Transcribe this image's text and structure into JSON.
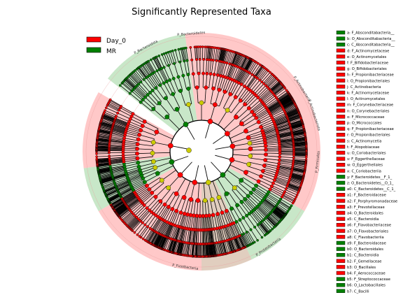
{
  "chart_data": {
    "type": "cladogram",
    "title": "Significantly Represented Taxa",
    "legend": {
      "placement": "top-left",
      "entries": [
        {
          "label": "Day_0",
          "color": "#ff0000"
        },
        {
          "label": "MR",
          "color": "#008000"
        }
      ]
    },
    "colors": {
      "Day_0": "#ff0000",
      "MR": "#008000",
      "neutral_node": "#cccc00",
      "Day_0_shade": "#ff9a9a",
      "MR_shade": "#9ad39a",
      "other_shade": "#c8a58a"
    },
    "outer_clades": [
      {
        "label": "P_Bacteroidetes",
        "group": "Day_0"
      },
      {
        "label": "P_Bacteroidota",
        "group": "MR"
      },
      {
        "label": "P_Actinobacteria",
        "group": "Day_0"
      },
      {
        "label": "P_Actinobacteriota",
        "group": "Day_0"
      },
      {
        "label": "P_Firmicutes",
        "group": "Day_0"
      },
      {
        "label": "P_Proteobacteria",
        "group": "MR"
      },
      {
        "label": "P_Fusobacteria",
        "group": "Day_0"
      }
    ],
    "clade_key": [
      {
        "code": "a",
        "taxon": "F_Absconditabacteria__",
        "group": "MR"
      },
      {
        "code": "b",
        "taxon": "O_Absconditabacteria__",
        "group": "MR"
      },
      {
        "code": "c",
        "taxon": "C_Absconditabacteria__",
        "group": "MR"
      },
      {
        "code": "d",
        "taxon": "F_Actinomycetaceae",
        "group": "Day_0"
      },
      {
        "code": "e",
        "taxon": "O_Actinomycetales",
        "group": "Day_0"
      },
      {
        "code": "f",
        "taxon": "F_Bifidobacteriaceae",
        "group": "Day_0"
      },
      {
        "code": "g",
        "taxon": "O_Bifidobacteriales",
        "group": "Day_0"
      },
      {
        "code": "h",
        "taxon": "F_Propionibacteriaceae",
        "group": "Day_0"
      },
      {
        "code": "i",
        "taxon": "O_Propionibacteriales",
        "group": "Day_0"
      },
      {
        "code": "j",
        "taxon": "C_Actinobacteria",
        "group": "Day_0"
      },
      {
        "code": "k",
        "taxon": "F_Actinomycetaceae",
        "group": "Day_0"
      },
      {
        "code": "l",
        "taxon": "O_Actinomycetales",
        "group": "Day_0"
      },
      {
        "code": "m",
        "taxon": "F_Corynebacteriaceae",
        "group": "Day_0"
      },
      {
        "code": "n",
        "taxon": "O_Corynebacteriales",
        "group": "Day_0"
      },
      {
        "code": "o",
        "taxon": "F_Micrococcaceae",
        "group": "Day_0"
      },
      {
        "code": "p",
        "taxon": "O_Micrococcales",
        "group": "Day_0"
      },
      {
        "code": "q",
        "taxon": "F_Propionibacteriaceae",
        "group": "Day_0"
      },
      {
        "code": "r",
        "taxon": "O_Propionibacteriales",
        "group": "Day_0"
      },
      {
        "code": "s",
        "taxon": "C_Actinomycetia",
        "group": "Day_0"
      },
      {
        "code": "t",
        "taxon": "F_Atopobiaceae",
        "group": "Day_0"
      },
      {
        "code": "u",
        "taxon": "O_Coriobacteriales",
        "group": "Day_0"
      },
      {
        "code": "v",
        "taxon": "F_Eggerthellaceae",
        "group": "Day_0"
      },
      {
        "code": "w",
        "taxon": "O_Eggerthellales",
        "group": "Day_0"
      },
      {
        "code": "x",
        "taxon": "C_Coriobacteriia",
        "group": "Day_0"
      },
      {
        "code": "y",
        "taxon": "F_Bacteroidetes__F_1_",
        "group": "MR"
      },
      {
        "code": "z",
        "taxon": "O_Bacteroidetes__O_1_",
        "group": "MR"
      },
      {
        "code": "a0",
        "taxon": "C_Bacteroidetes__C_1_",
        "group": "MR"
      },
      {
        "code": "a1",
        "taxon": "F_Bacteroidaceae",
        "group": "Day_0"
      },
      {
        "code": "a2",
        "taxon": "F_Porphyromonadaceae",
        "group": "Day_0"
      },
      {
        "code": "a3",
        "taxon": "F_Prevotellaceae",
        "group": "Day_0"
      },
      {
        "code": "a4",
        "taxon": "O_Bacteroidales",
        "group": "Day_0"
      },
      {
        "code": "a5",
        "taxon": "C_Bacteroidia",
        "group": "Day_0"
      },
      {
        "code": "a6",
        "taxon": "F_Flavobacteriaceae",
        "group": "Day_0"
      },
      {
        "code": "a7",
        "taxon": "O_Flavobacteriales",
        "group": "Day_0"
      },
      {
        "code": "a8",
        "taxon": "C_Flavobacteriia",
        "group": "Day_0"
      },
      {
        "code": "a9",
        "taxon": "F_Bacteroidaceae",
        "group": "MR"
      },
      {
        "code": "b0",
        "taxon": "O_Bacteroidales",
        "group": "MR"
      },
      {
        "code": "b1",
        "taxon": "C_Bacteroidia",
        "group": "MR"
      },
      {
        "code": "b2",
        "taxon": "F_Gemellaceae",
        "group": "Day_0"
      },
      {
        "code": "b3",
        "taxon": "O_Bacillales",
        "group": "Day_0"
      },
      {
        "code": "b4",
        "taxon": "F_Aerococcaceae",
        "group": "Day_0"
      },
      {
        "code": "b5",
        "taxon": "F_Streptococcaceae",
        "group": "MR"
      },
      {
        "code": "b6",
        "taxon": "O_Lactobacillales",
        "group": "MR"
      },
      {
        "code": "b7",
        "taxon": "C_Bacilli",
        "group": "MR"
      }
    ]
  }
}
